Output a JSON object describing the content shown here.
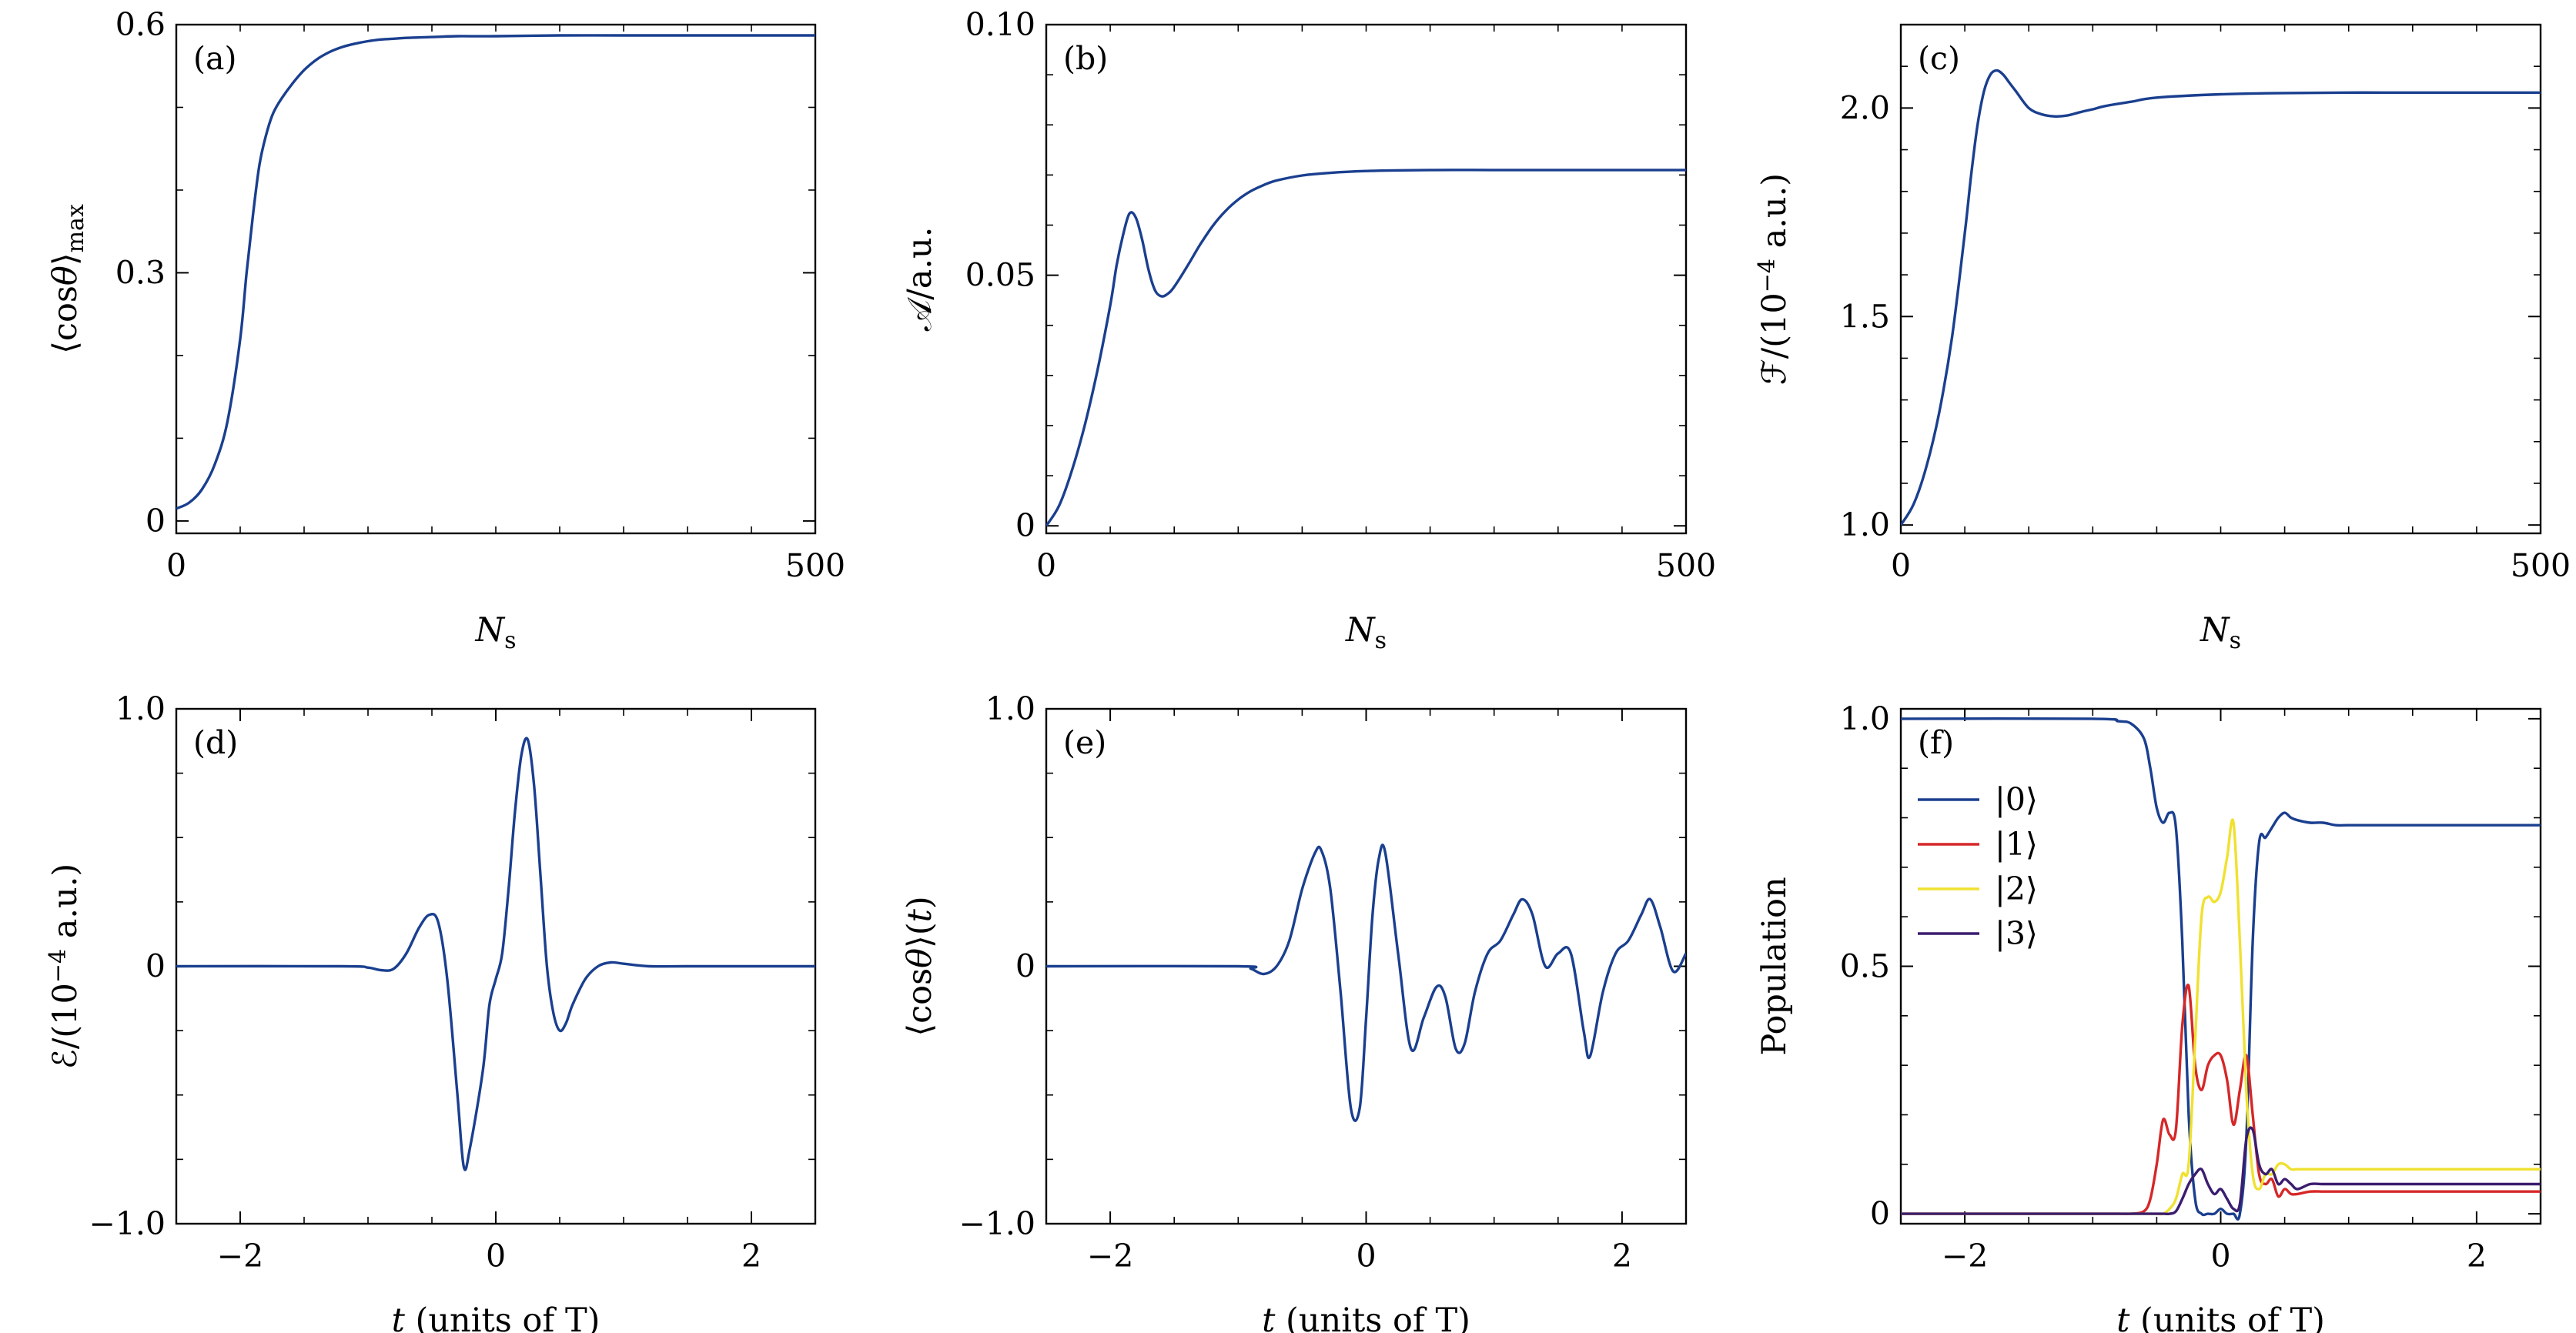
{
  "chart_data": [
    {
      "panel": "(a)",
      "type": "line",
      "xlabel": "N_s",
      "ylabel": "⟨cosθ⟩max",
      "xlim": [
        0,
        500
      ],
      "ylim": [
        -0.015,
        0.6
      ],
      "xticks": [
        0,
        500
      ],
      "yticks": [
        0,
        0.3,
        0.6
      ],
      "ytick_labels": [
        "0",
        "0.3",
        "0.6"
      ],
      "x": [
        0,
        10,
        20,
        30,
        40,
        50,
        55,
        60,
        65,
        70,
        75,
        80,
        90,
        100,
        110,
        120,
        130,
        140,
        150,
        160,
        170,
        180,
        200,
        220,
        250,
        300,
        350,
        400,
        450,
        500
      ],
      "series": [
        {
          "name": "",
          "color": "#1a3f8f",
          "values": [
            0.015,
            0.022,
            0.038,
            0.068,
            0.12,
            0.22,
            0.3,
            0.37,
            0.43,
            0.465,
            0.49,
            0.505,
            0.527,
            0.545,
            0.558,
            0.567,
            0.573,
            0.577,
            0.58,
            0.582,
            0.583,
            0.584,
            0.585,
            0.586,
            0.586,
            0.587,
            0.587,
            0.587,
            0.587,
            0.587
          ]
        }
      ]
    },
    {
      "panel": "(b)",
      "type": "line",
      "xlabel": "N_s",
      "ylabel": "𝒜/a.u.",
      "xlim": [
        0,
        500
      ],
      "ylim": [
        -0.0015,
        0.1
      ],
      "xticks": [
        0,
        500
      ],
      "yticks": [
        0,
        0.05,
        0.1
      ],
      "ytick_labels": [
        "0",
        "0.05",
        "0.10"
      ],
      "x": [
        0,
        10,
        20,
        30,
        40,
        50,
        55,
        60,
        65,
        70,
        75,
        80,
        85,
        90,
        95,
        100,
        110,
        120,
        130,
        140,
        150,
        160,
        170,
        180,
        200,
        220,
        250,
        300,
        350,
        400,
        450,
        500
      ],
      "series": [
        {
          "name": "",
          "color": "#1a3f8f",
          "values": [
            0.0,
            0.004,
            0.011,
            0.02,
            0.031,
            0.044,
            0.052,
            0.058,
            0.0623,
            0.0615,
            0.057,
            0.051,
            0.047,
            0.0458,
            0.0463,
            0.0477,
            0.0517,
            0.056,
            0.0598,
            0.0628,
            0.0651,
            0.0668,
            0.068,
            0.0689,
            0.0699,
            0.0704,
            0.0708,
            0.071,
            0.071,
            0.071,
            0.071,
            0.071
          ]
        }
      ]
    },
    {
      "panel": "(c)",
      "type": "line",
      "xlabel": "N_s",
      "ylabel": "ℱ/(10⁻⁴ a.u.)",
      "xlim": [
        0,
        500
      ],
      "ylim": [
        0.98,
        2.2
      ],
      "xticks": [
        0,
        500
      ],
      "yticks": [
        1.0,
        1.5,
        2.0
      ],
      "ytick_labels": [
        "1.0",
        "1.5",
        "2.0"
      ],
      "x": [
        0,
        10,
        20,
        30,
        40,
        50,
        55,
        60,
        65,
        70,
        75,
        80,
        85,
        90,
        100,
        110,
        120,
        130,
        140,
        150,
        160,
        180,
        200,
        250,
        300,
        350,
        400,
        450,
        500
      ],
      "series": [
        {
          "name": "",
          "color": "#1a3f8f",
          "values": [
            1.0,
            1.05,
            1.14,
            1.27,
            1.45,
            1.7,
            1.84,
            1.96,
            2.04,
            2.08,
            2.09,
            2.08,
            2.06,
            2.04,
            2.0,
            1.985,
            1.98,
            1.982,
            1.99,
            1.997,
            2.005,
            2.015,
            2.025,
            2.033,
            2.036,
            2.037,
            2.037,
            2.037,
            2.037
          ]
        }
      ]
    },
    {
      "panel": "(d)",
      "type": "line",
      "xlabel": "t (units of T)",
      "ylabel": "ℰ/(10⁻⁴ a.u.)",
      "xlim": [
        -2.5,
        2.5
      ],
      "ylim": [
        -1.0,
        1.0
      ],
      "xticks": [
        -2,
        0,
        2
      ],
      "xtick_labels": [
        "−2",
        "0",
        "2"
      ],
      "yticks": [
        -1.0,
        0,
        1.0
      ],
      "ytick_labels": [
        "−1.0",
        "0",
        "1.0"
      ],
      "x": [
        -2.5,
        -1.2,
        -1.0,
        -0.9,
        -0.8,
        -0.7,
        -0.6,
        -0.52,
        -0.45,
        -0.38,
        -0.3,
        -0.25,
        -0.2,
        -0.1,
        -0.05,
        0.0,
        0.05,
        0.1,
        0.15,
        0.2,
        0.25,
        0.3,
        0.35,
        0.4,
        0.45,
        0.5,
        0.55,
        0.6,
        0.7,
        0.8,
        0.9,
        1.0,
        1.2,
        1.5,
        2.5
      ],
      "series": [
        {
          "name": "",
          "color": "#1a3f8f",
          "values": [
            0.0,
            0.0,
            -0.005,
            -0.015,
            -0.01,
            0.05,
            0.15,
            0.2,
            0.17,
            -0.05,
            -0.5,
            -0.78,
            -0.7,
            -0.4,
            -0.15,
            -0.05,
            0.05,
            0.3,
            0.6,
            0.82,
            0.88,
            0.7,
            0.35,
            0.0,
            -0.18,
            -0.25,
            -0.22,
            -0.15,
            -0.05,
            0.0,
            0.015,
            0.01,
            0.0,
            0.0,
            0.0
          ]
        }
      ]
    },
    {
      "panel": "(e)",
      "type": "line",
      "xlabel": "t (units of T)",
      "ylabel": "⟨cosθ⟩(t)",
      "xlim": [
        -2.5,
        2.5
      ],
      "ylim": [
        -1.0,
        1.0
      ],
      "xticks": [
        -2,
        0,
        2
      ],
      "xtick_labels": [
        "−2",
        "0",
        "2"
      ],
      "yticks": [
        -1.0,
        0,
        1.0
      ],
      "ytick_labels": [
        "−1.0",
        "0",
        "1.0"
      ],
      "x": [
        -2.5,
        -1.0,
        -0.9,
        -0.8,
        -0.7,
        -0.6,
        -0.5,
        -0.4,
        -0.35,
        -0.28,
        -0.2,
        -0.12,
        -0.05,
        0.0,
        0.05,
        0.1,
        0.15,
        0.25,
        0.35,
        0.45,
        0.55,
        0.62,
        0.7,
        0.77,
        0.85,
        0.95,
        1.05,
        1.15,
        1.22,
        1.3,
        1.4,
        1.5,
        1.6,
        1.7,
        1.75,
        1.85,
        1.95,
        2.05,
        2.15,
        2.22,
        2.3,
        2.4,
        2.5
      ],
      "series": [
        {
          "name": "",
          "color": "#1a3f8f",
          "values": [
            0.0,
            0.0,
            -0.01,
            -0.03,
            0.0,
            0.1,
            0.3,
            0.44,
            0.45,
            0.3,
            -0.1,
            -0.55,
            -0.55,
            -0.2,
            0.2,
            0.42,
            0.44,
            0.05,
            -0.32,
            -0.2,
            -0.08,
            -0.12,
            -0.32,
            -0.3,
            -0.1,
            0.05,
            0.1,
            0.2,
            0.26,
            0.2,
            0.0,
            0.05,
            0.05,
            -0.25,
            -0.35,
            -0.1,
            0.05,
            0.1,
            0.2,
            0.26,
            0.15,
            -0.02,
            0.05
          ]
        }
      ]
    },
    {
      "panel": "(f)",
      "type": "line",
      "xlabel": "t (units of T)",
      "ylabel": "Population",
      "xlim": [
        -2.5,
        2.5
      ],
      "ylim": [
        -0.02,
        1.02
      ],
      "xticks": [
        -2,
        0,
        2
      ],
      "xtick_labels": [
        "−2",
        "0",
        "2"
      ],
      "yticks": [
        0,
        0.5,
        1.0
      ],
      "ytick_labels": [
        "0",
        "0.5",
        "1.0"
      ],
      "legend_placement": "upper-left",
      "x": [
        -2.5,
        -1.0,
        -0.8,
        -0.7,
        -0.6,
        -0.55,
        -0.5,
        -0.45,
        -0.4,
        -0.35,
        -0.3,
        -0.25,
        -0.2,
        -0.15,
        -0.1,
        -0.05,
        0.0,
        0.05,
        0.1,
        0.15,
        0.2,
        0.25,
        0.3,
        0.35,
        0.4,
        0.45,
        0.5,
        0.55,
        0.6,
        0.7,
        0.8,
        0.9,
        1.0,
        1.2,
        1.5,
        2.0,
        2.5
      ],
      "series": [
        {
          "name": "|0⟩",
          "color": "#1a3f8f",
          "values": [
            1.0,
            1.0,
            0.995,
            0.99,
            0.96,
            0.9,
            0.82,
            0.79,
            0.81,
            0.78,
            0.55,
            0.2,
            0.03,
            0.0,
            0.0,
            0.0,
            0.01,
            0.0,
            0.0,
            0.0,
            0.15,
            0.55,
            0.75,
            0.76,
            0.78,
            0.8,
            0.81,
            0.8,
            0.795,
            0.79,
            0.79,
            0.785,
            0.785,
            0.785,
            0.785,
            0.785,
            0.785
          ]
        },
        {
          "name": "|1⟩",
          "color": "#d62728",
          "values": [
            0.0,
            0.0,
            0.0,
            0.0,
            0.005,
            0.03,
            0.1,
            0.19,
            0.16,
            0.17,
            0.38,
            0.46,
            0.3,
            0.25,
            0.3,
            0.32,
            0.32,
            0.27,
            0.18,
            0.25,
            0.32,
            0.2,
            0.08,
            0.06,
            0.07,
            0.035,
            0.05,
            0.04,
            0.04,
            0.045,
            0.045,
            0.045,
            0.045,
            0.045,
            0.045,
            0.045,
            0.045
          ]
        },
        {
          "name": "|2⟩",
          "color": "#f0e130",
          "values": [
            0.0,
            0.0,
            0.0,
            0.0,
            0.0,
            0.0,
            0.0,
            0.0,
            0.01,
            0.03,
            0.08,
            0.1,
            0.35,
            0.6,
            0.64,
            0.63,
            0.65,
            0.72,
            0.79,
            0.55,
            0.25,
            0.08,
            0.05,
            0.08,
            0.08,
            0.1,
            0.1,
            0.09,
            0.09,
            0.09,
            0.09,
            0.09,
            0.09,
            0.09,
            0.09,
            0.09,
            0.09
          ]
        },
        {
          "name": "|3⟩",
          "color": "#3b1d6e",
          "values": [
            0.0,
            0.0,
            0.0,
            0.0,
            0.0,
            0.0,
            0.0,
            0.0,
            0.0,
            0.005,
            0.03,
            0.06,
            0.08,
            0.09,
            0.06,
            0.04,
            0.05,
            0.03,
            0.01,
            0.02,
            0.15,
            0.17,
            0.1,
            0.08,
            0.09,
            0.06,
            0.07,
            0.06,
            0.05,
            0.06,
            0.06,
            0.06,
            0.06,
            0.06,
            0.06,
            0.06,
            0.06
          ]
        }
      ]
    }
  ]
}
